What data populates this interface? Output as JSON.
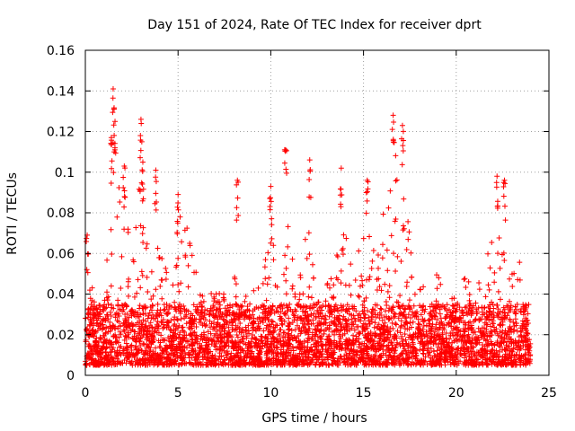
{
  "chart_data": {
    "type": "scatter",
    "title": "Day 151 of 2024, Rate Of TEC Index for receiver dprt",
    "xlabel": "GPS time / hours",
    "ylabel": "ROTI / TECUs",
    "xlim": [
      0,
      25
    ],
    "ylim": [
      0,
      0.16
    ],
    "x_ticks": [
      "0",
      "5",
      "10",
      "15",
      "20",
      "25"
    ],
    "y_ticks": [
      "0",
      "0.02",
      "0.04",
      "0.06",
      "0.08",
      "0.1",
      "0.12",
      "0.14",
      "0.16"
    ],
    "grid": true,
    "marker": "plus",
    "series_color": "#ff0000",
    "time_span_hours": [
      0,
      24
    ],
    "baseline_band": [
      0.005,
      0.035
    ],
    "envelope": {
      "x": [
        0,
        0.5,
        1,
        1.5,
        2,
        2.5,
        3,
        3.5,
        4,
        4.5,
        5,
        5.5,
        6,
        6.5,
        7,
        7.5,
        8,
        8.5,
        9,
        9.5,
        10,
        10.5,
        11,
        11.5,
        12,
        12.5,
        13,
        13.5,
        14,
        14.5,
        15,
        15.5,
        16,
        16.5,
        17,
        17.5,
        18,
        18.5,
        19,
        19.5,
        20,
        20.5,
        21,
        21.5,
        22,
        22.5,
        23,
        23.5,
        24
      ],
      "y": [
        0.065,
        0.04,
        0.035,
        0.12,
        0.09,
        0.06,
        0.1,
        0.05,
        0.09,
        0.04,
        0.085,
        0.08,
        0.05,
        0.04,
        0.045,
        0.04,
        0.05,
        0.04,
        0.05,
        0.04,
        0.08,
        0.05,
        0.08,
        0.05,
        0.085,
        0.05,
        0.05,
        0.06,
        0.09,
        0.05,
        0.08,
        0.065,
        0.08,
        0.11,
        0.11,
        0.07,
        0.05,
        0.05,
        0.05,
        0.04,
        0.04,
        0.05,
        0.045,
        0.05,
        0.08,
        0.065,
        0.05,
        0.06,
        0.04
      ]
    },
    "peaks": [
      {
        "x": 0.1,
        "y": 0.069
      },
      {
        "x": 1.5,
        "y": 0.141
      },
      {
        "x": 1.4,
        "y": 0.117
      },
      {
        "x": 1.6,
        "y": 0.125
      },
      {
        "x": 2.1,
        "y": 0.103
      },
      {
        "x": 3.0,
        "y": 0.126
      },
      {
        "x": 3.1,
        "y": 0.105
      },
      {
        "x": 3.8,
        "y": 0.101
      },
      {
        "x": 5.0,
        "y": 0.089
      },
      {
        "x": 8.2,
        "y": 0.096
      },
      {
        "x": 10.0,
        "y": 0.093
      },
      {
        "x": 10.8,
        "y": 0.111
      },
      {
        "x": 12.1,
        "y": 0.106
      },
      {
        "x": 13.8,
        "y": 0.102
      },
      {
        "x": 15.2,
        "y": 0.096
      },
      {
        "x": 16.6,
        "y": 0.128
      },
      {
        "x": 17.1,
        "y": 0.123
      },
      {
        "x": 22.2,
        "y": 0.098
      },
      {
        "x": 22.6,
        "y": 0.096
      }
    ]
  }
}
